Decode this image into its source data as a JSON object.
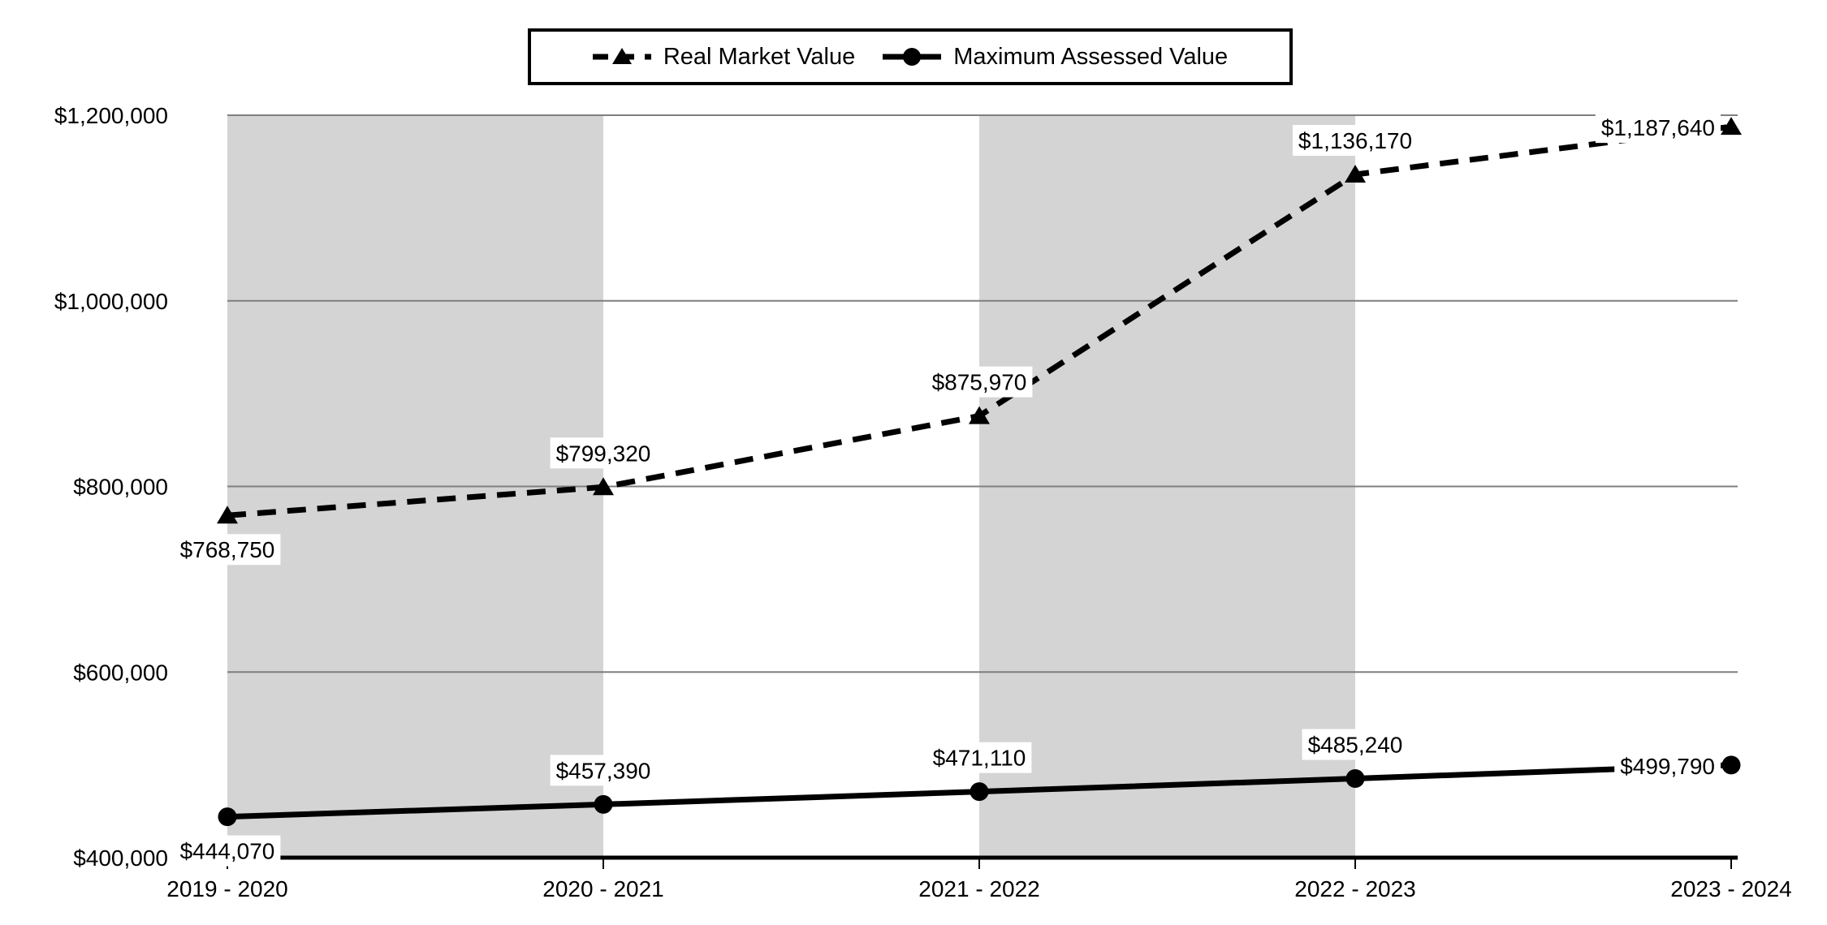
{
  "chart_data": {
    "type": "line",
    "categories": [
      "2019 - 2020",
      "2020 - 2021",
      "2021 - 2022",
      "2022 - 2023",
      "2023 - 2024"
    ],
    "series": [
      {
        "name": "Real Market Value",
        "values": [
          768750,
          799320,
          875970,
          1136170,
          1187640
        ],
        "labels": [
          "$768,750",
          "$799,320",
          "$875,970",
          "$1,136,170",
          "$1,187,640"
        ],
        "line_style": "dashed",
        "marker": "triangle",
        "color": "#000000",
        "label_positions": [
          "below",
          "above",
          "above",
          "above",
          "left"
        ]
      },
      {
        "name": "Maximum Assessed Value",
        "values": [
          444070,
          457390,
          471110,
          485240,
          499790
        ],
        "labels": [
          "$444,070",
          "$457,390",
          "$471,110",
          "$485,240",
          "$499,790"
        ],
        "line_style": "solid",
        "marker": "circle",
        "color": "#000000",
        "label_positions": [
          "below",
          "above",
          "above",
          "above",
          "left"
        ]
      }
    ],
    "y_axis": {
      "min": 400000,
      "max": 1200000,
      "step": 200000,
      "tick_labels": [
        "$400,000",
        "$600,000",
        "$800,000",
        "$1,000,000",
        "$1,200,000"
      ]
    },
    "x_axis": {
      "tick_labels": [
        "2019 - 2020",
        "2020 - 2021",
        "2021 - 2022",
        "2022 - 2023",
        "2023 - 2024"
      ]
    },
    "shaded_band_category_spans": [
      [
        0,
        1
      ],
      [
        2,
        3
      ]
    ],
    "colors": {
      "band": "#d4d4d4",
      "gridline": "#7f7f7f",
      "axis_line": "#000000",
      "series": "#000000",
      "label_background": "#ffffff",
      "background": "#ffffff"
    },
    "legend": {
      "position": "top-center",
      "border": true,
      "entries": [
        {
          "label": "Real Market Value",
          "marker": "triangle",
          "line": "dashed"
        },
        {
          "label": "Maximum Assessed Value",
          "marker": "circle",
          "line": "solid"
        }
      ]
    },
    "grid": true,
    "title": "",
    "xlabel": "",
    "ylabel": ""
  }
}
